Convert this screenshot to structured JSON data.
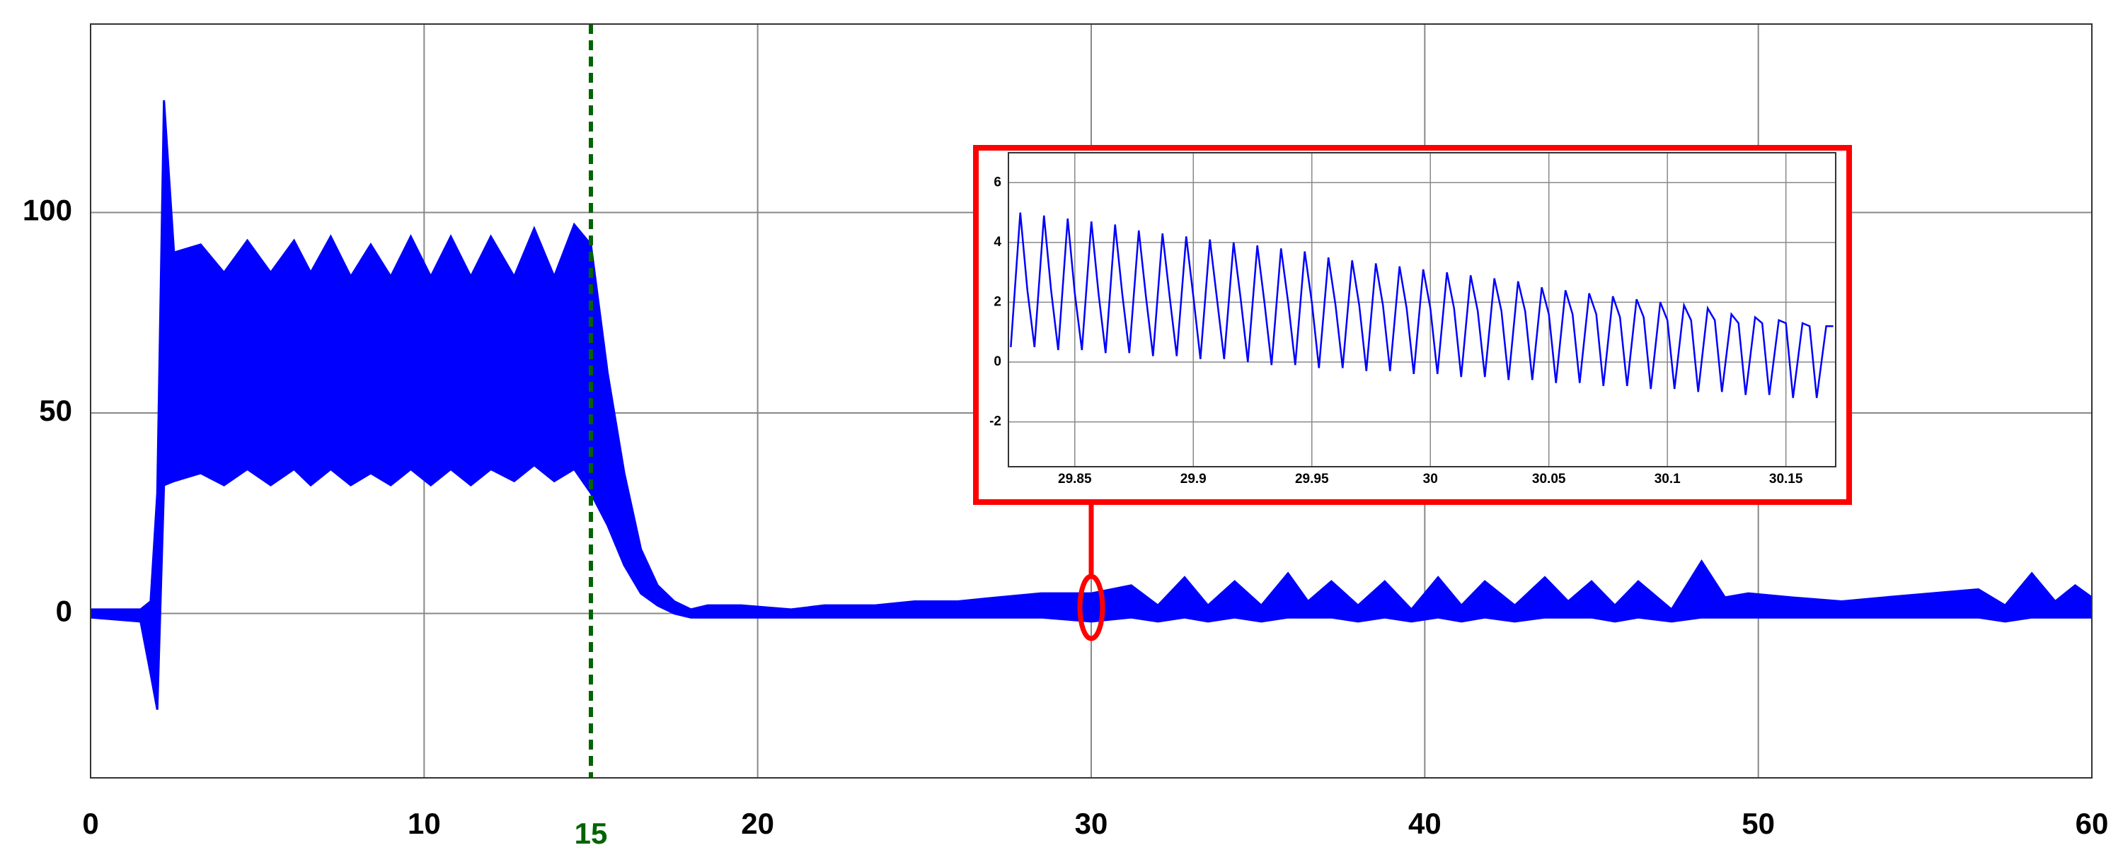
{
  "chart_data": [
    {
      "type": "band",
      "color": "#0000ff",
      "xlim": [
        0,
        60
      ],
      "ylim": [
        -41,
        147
      ],
      "xticks": [
        0,
        10,
        20,
        30,
        40,
        50,
        60
      ],
      "yticks": [
        0,
        50,
        100
      ],
      "grid": true,
      "vline": {
        "x": 15,
        "color": "#006400"
      },
      "x": [
        0,
        1.5,
        1.8,
        2.0,
        2.2,
        2.5,
        3.3,
        4.0,
        4.7,
        5.4,
        6.1,
        6.6,
        7.2,
        7.8,
        8.4,
        9.0,
        9.6,
        10.2,
        10.8,
        11.4,
        12.0,
        12.7,
        13.3,
        13.9,
        14.5,
        15.0,
        15.5,
        16.0,
        16.5,
        17.0,
        17.5,
        18.0,
        18.5,
        19.5,
        21.0,
        22.0,
        23.5,
        24.7,
        26.0,
        27.2,
        28.5,
        30.0,
        31.2,
        32.0,
        32.8,
        33.5,
        34.3,
        35.1,
        35.9,
        36.5,
        37.2,
        38.0,
        38.8,
        39.6,
        40.4,
        41.1,
        41.8,
        42.7,
        43.6,
        44.3,
        45.0,
        45.7,
        46.4,
        47.4,
        48.3,
        49.0,
        49.7,
        51.0,
        52.5,
        53.8,
        55.2,
        56.6,
        57.4,
        58.2,
        58.9,
        59.5,
        60.0
      ],
      "series": [
        {
          "values": [
            1,
            1,
            3,
            30,
            128,
            90,
            92,
            85,
            93,
            85,
            93,
            85,
            94,
            84,
            92,
            84,
            94,
            84,
            94,
            84,
            94,
            84,
            96,
            84,
            97,
            92,
            60,
            35,
            16,
            7,
            3,
            1,
            2,
            2,
            1,
            2,
            2,
            3,
            3,
            4,
            5,
            5,
            7,
            2,
            9,
            2,
            8,
            2,
            10,
            3,
            8,
            2,
            8,
            1,
            9,
            2,
            8,
            2,
            9,
            3,
            8,
            2,
            8,
            1,
            13,
            4,
            5,
            4,
            3,
            4,
            5,
            6,
            2,
            10,
            3,
            7,
            4
          ]
        },
        {
          "values": [
            -1,
            -2,
            -15,
            -24,
            32,
            33,
            35,
            32,
            36,
            32,
            36,
            32,
            36,
            32,
            35,
            32,
            36,
            32,
            36,
            32,
            36,
            33,
            37,
            33,
            36,
            30,
            22,
            12,
            5,
            2,
            0,
            -1,
            -1,
            -1,
            -1,
            -1,
            -1,
            -1,
            -1,
            -1,
            -1,
            -2,
            -1,
            -2,
            -1,
            -2,
            -1,
            -2,
            -1,
            -1,
            -1,
            -2,
            -1,
            -2,
            -1,
            -2,
            -1,
            -2,
            -1,
            -1,
            -1,
            -2,
            -1,
            -2,
            -1,
            -1,
            -1,
            -1,
            -1,
            -1,
            -1,
            -1,
            -2,
            -1,
            -1,
            -1,
            -1
          ]
        }
      ]
    },
    {
      "type": "line",
      "color": "#0000ff",
      "xlim": [
        29.822,
        30.171
      ],
      "ylim": [
        -3.5,
        7
      ],
      "xticks": [
        29.85,
        29.9,
        29.95,
        30,
        30.05,
        30.1,
        30.15
      ],
      "yticks": [
        -2,
        0,
        2,
        4,
        6
      ],
      "grid": true,
      "frame_color": "#ff0000",
      "x": [
        29.823,
        29.827,
        29.83,
        29.833,
        29.837,
        29.84,
        29.843,
        29.847,
        29.85,
        29.853,
        29.857,
        29.86,
        29.863,
        29.867,
        29.87,
        29.873,
        29.877,
        29.88,
        29.883,
        29.887,
        29.89,
        29.893,
        29.897,
        29.9,
        29.903,
        29.907,
        29.91,
        29.913,
        29.917,
        29.92,
        29.923,
        29.927,
        29.93,
        29.933,
        29.937,
        29.94,
        29.943,
        29.947,
        29.95,
        29.953,
        29.957,
        29.96,
        29.963,
        29.967,
        29.97,
        29.973,
        29.977,
        29.98,
        29.983,
        29.987,
        29.99,
        29.993,
        29.997,
        30.0,
        30.003,
        30.007,
        30.01,
        30.013,
        30.017,
        30.02,
        30.023,
        30.027,
        30.03,
        30.033,
        30.037,
        30.04,
        30.043,
        30.047,
        30.05,
        30.053,
        30.057,
        30.06,
        30.063,
        30.067,
        30.07,
        30.073,
        30.077,
        30.08,
        30.083,
        30.087,
        30.09,
        30.093,
        30.097,
        30.1,
        30.103,
        30.107,
        30.11,
        30.113,
        30.117,
        30.12,
        30.123,
        30.127,
        30.13,
        30.133,
        30.137,
        30.14,
        30.143,
        30.147,
        30.15,
        30.153,
        30.157,
        30.16,
        30.163,
        30.167,
        30.17
      ],
      "values": [
        0.5,
        5.0,
        2.4,
        0.5,
        4.9,
        2.4,
        0.4,
        4.8,
        2.3,
        0.4,
        4.7,
        2.3,
        0.3,
        4.6,
        2.3,
        0.3,
        4.4,
        2.2,
        0.2,
        4.3,
        2.2,
        0.2,
        4.2,
        2.2,
        0.1,
        4.1,
        2.1,
        0.1,
        4.0,
        2.1,
        0.0,
        3.9,
        2.0,
        -0.1,
        3.8,
        2.0,
        -0.1,
        3.7,
        2.0,
        -0.2,
        3.5,
        1.9,
        -0.2,
        3.4,
        1.9,
        -0.3,
        3.3,
        1.9,
        -0.3,
        3.2,
        1.8,
        -0.4,
        3.1,
        1.8,
        -0.4,
        3.0,
        1.8,
        -0.5,
        2.9,
        1.7,
        -0.5,
        2.8,
        1.7,
        -0.6,
        2.7,
        1.7,
        -0.6,
        2.5,
        1.6,
        -0.7,
        2.4,
        1.6,
        -0.7,
        2.3,
        1.6,
        -0.8,
        2.2,
        1.5,
        -0.8,
        2.1,
        1.5,
        -0.9,
        2.0,
        1.4,
        -0.9,
        1.9,
        1.4,
        -1.0,
        1.8,
        1.4,
        -1.0,
        1.6,
        1.3,
        -1.1,
        1.5,
        1.3,
        -1.1,
        1.4,
        1.3,
        -1.2,
        1.3,
        1.2,
        -1.2,
        1.2,
        1.2
      ]
    }
  ]
}
